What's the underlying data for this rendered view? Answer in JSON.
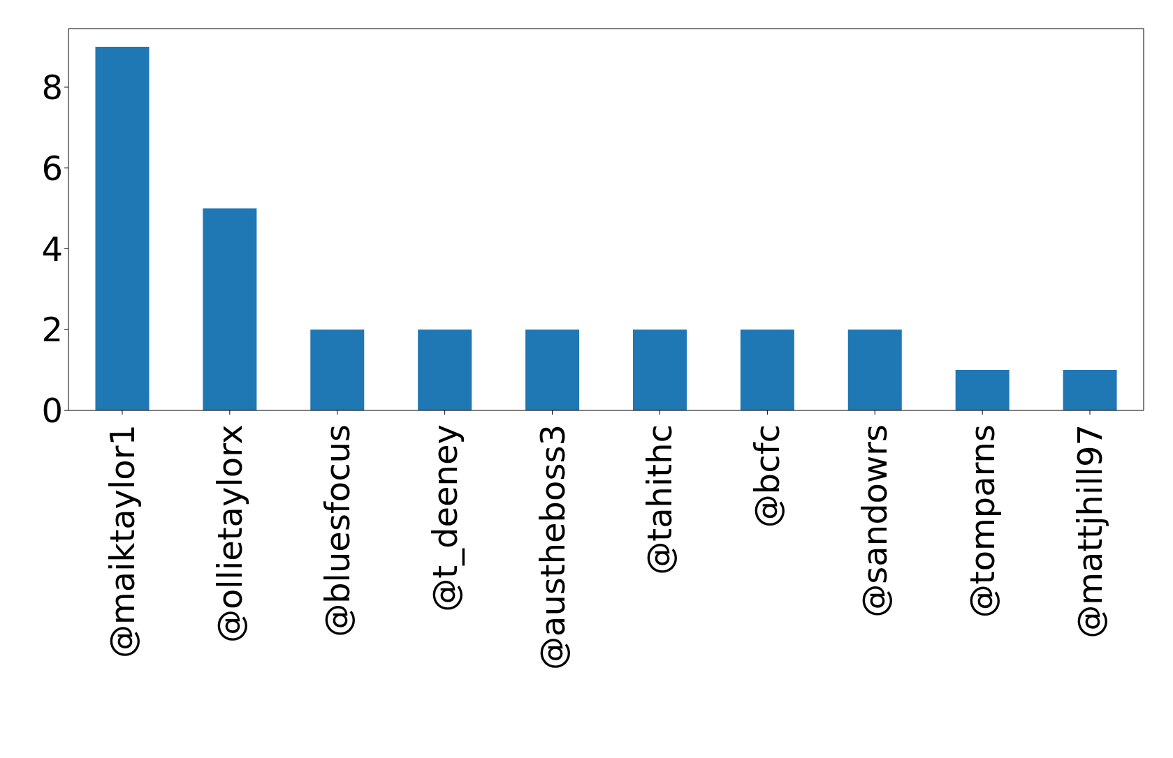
{
  "chart_data": {
    "type": "bar",
    "categories": [
      "@maiktaylor1",
      "@ollietaylorx",
      "@bluesfocus",
      "@t_deeney",
      "@austheboss3",
      "@tahithc",
      "@bcfc",
      "@sandowrs",
      "@tomparns",
      "@mattjhill97"
    ],
    "values": [
      9,
      5,
      2,
      2,
      2,
      2,
      2,
      2,
      1,
      1
    ],
    "color": "#1f77b4",
    "ylim": [
      0,
      9.45
    ],
    "yticks": [
      0,
      2,
      4,
      6,
      8
    ],
    "grid": false
  }
}
